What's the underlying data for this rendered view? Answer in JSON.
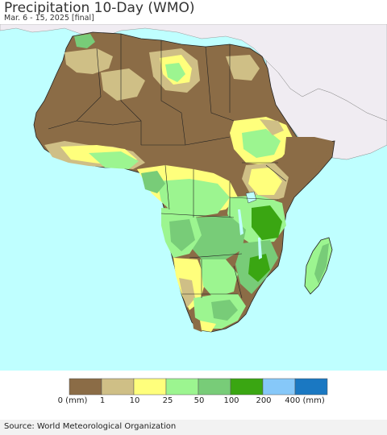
{
  "header": {
    "title": "Precipitation 10-Day (WMO)",
    "subtitle": "Mar. 6 - 15, 2025 [final]"
  },
  "legend": {
    "units_note": "(mm)",
    "labels": [
      "0 (mm)",
      "1",
      "10",
      "25",
      "50",
      "100",
      "200",
      "400 (mm)"
    ],
    "colors": [
      "#8b6c46",
      "#cfbf86",
      "#ffff7c",
      "#9cf590",
      "#78cc78",
      "#3aa612",
      "#86c8f9",
      "#1a78c2"
    ]
  },
  "colors": {
    "ocean": "#bfffff",
    "outside_land": "#f0ecf2",
    "border": "#222222"
  },
  "footer": {
    "source": "Source: World Meteorological Organization"
  }
}
